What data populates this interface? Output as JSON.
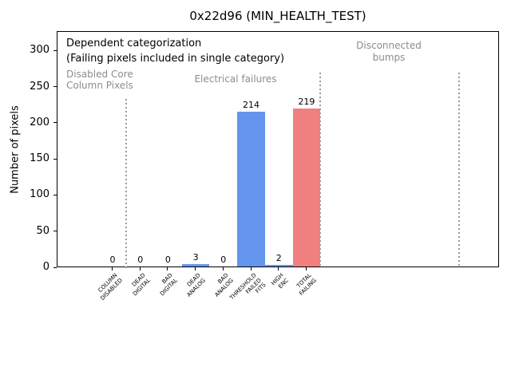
{
  "chart_data": {
    "type": "bar",
    "title": "0x22d96 (MIN_HEALTH_TEST)",
    "xlabel": "",
    "ylabel": "Number of pixels",
    "categories": [
      [
        "COLUMN",
        "DISABLED"
      ],
      [
        "DEAD",
        "DIGITAL"
      ],
      [
        "BAD",
        "DIGITAL"
      ],
      [
        "DEAD",
        "ANALOG"
      ],
      [
        "BAD",
        "ANALOG"
      ],
      [
        "THRESHOLD",
        "FAILED",
        "FITS"
      ],
      [
        "HIGH",
        "ENC"
      ],
      [
        "TOTAL",
        "FAILING"
      ]
    ],
    "values": [
      0,
      0,
      0,
      3,
      0,
      214,
      2,
      219
    ],
    "value_labels": [
      "0",
      "0",
      "0",
      "3",
      "0",
      "214",
      "2",
      "219"
    ],
    "bar_colors": [
      "#6495ed",
      "#6495ed",
      "#6495ed",
      "#6495ed",
      "#6495ed",
      "#6495ed",
      "#6495ed",
      "#f08080"
    ],
    "yticks": [
      0,
      50,
      100,
      150,
      200,
      250,
      300
    ],
    "ylim": [
      0,
      328
    ],
    "grid": false,
    "legend": null,
    "separators": [
      {
        "x": 0.5
      },
      {
        "x": 7.5
      },
      {
        "x": 12.5
      }
    ],
    "separator_color": "#999999",
    "annotations": [
      {
        "id": "dependent-categorization",
        "lines": [
          "Dependent categorization"
        ],
        "color": "#000000"
      },
      {
        "id": "dependent-categorization-sub",
        "lines": [
          "(Failing pixels included in single category)"
        ],
        "color": "#000000"
      },
      {
        "id": "disabled-core-region-label",
        "lines": [
          "Disabled Core",
          "Column Pixels"
        ],
        "color": "#8c8c8c"
      },
      {
        "id": "electrical-region-label",
        "lines": [
          "Electrical failures"
        ],
        "color": "#8c8c8c"
      },
      {
        "id": "disconnected-region-label",
        "lines": [
          "Disconnected",
          "bumps"
        ],
        "color": "#8c8c8c"
      }
    ]
  }
}
